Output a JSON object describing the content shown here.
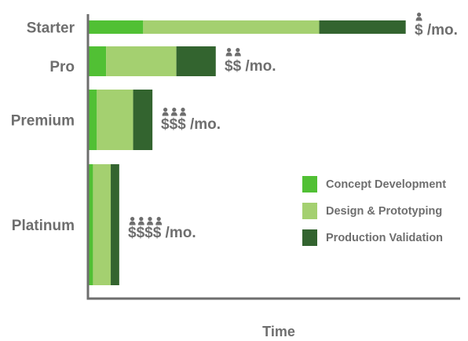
{
  "chart_data": {
    "type": "bar",
    "orientation": "horizontal",
    "stacked": true,
    "title": "",
    "xlabel": "Time",
    "ylabel": "",
    "categories": [
      "Starter",
      "Pro",
      "Premium",
      "Platinum"
    ],
    "series": [
      {
        "name": "Concept Development",
        "values": [
          70,
          22,
          10,
          5
        ]
      },
      {
        "name": "Design & Prototyping",
        "values": [
          228,
          91,
          47,
          23
        ]
      },
      {
        "name": "Production Validation",
        "values": [
          112,
          51,
          25,
          11
        ]
      }
    ],
    "price_labels": [
      {
        "symbol": "$",
        "suffix": " /mo.",
        "people": 1
      },
      {
        "symbol": "$$",
        "suffix": " /mo.",
        "people": 2
      },
      {
        "symbol": "$$$",
        "suffix": " /mo.",
        "people": 3
      },
      {
        "symbol": "$$$$",
        "suffix": " /mo.",
        "people": 4
      }
    ],
    "xlim": [
      0,
      480
    ],
    "grid": false,
    "legend_position": "right",
    "colors": [
      "#51c034",
      "#a4d070",
      "#33642f"
    ],
    "text_color": "#6e6e6e"
  }
}
